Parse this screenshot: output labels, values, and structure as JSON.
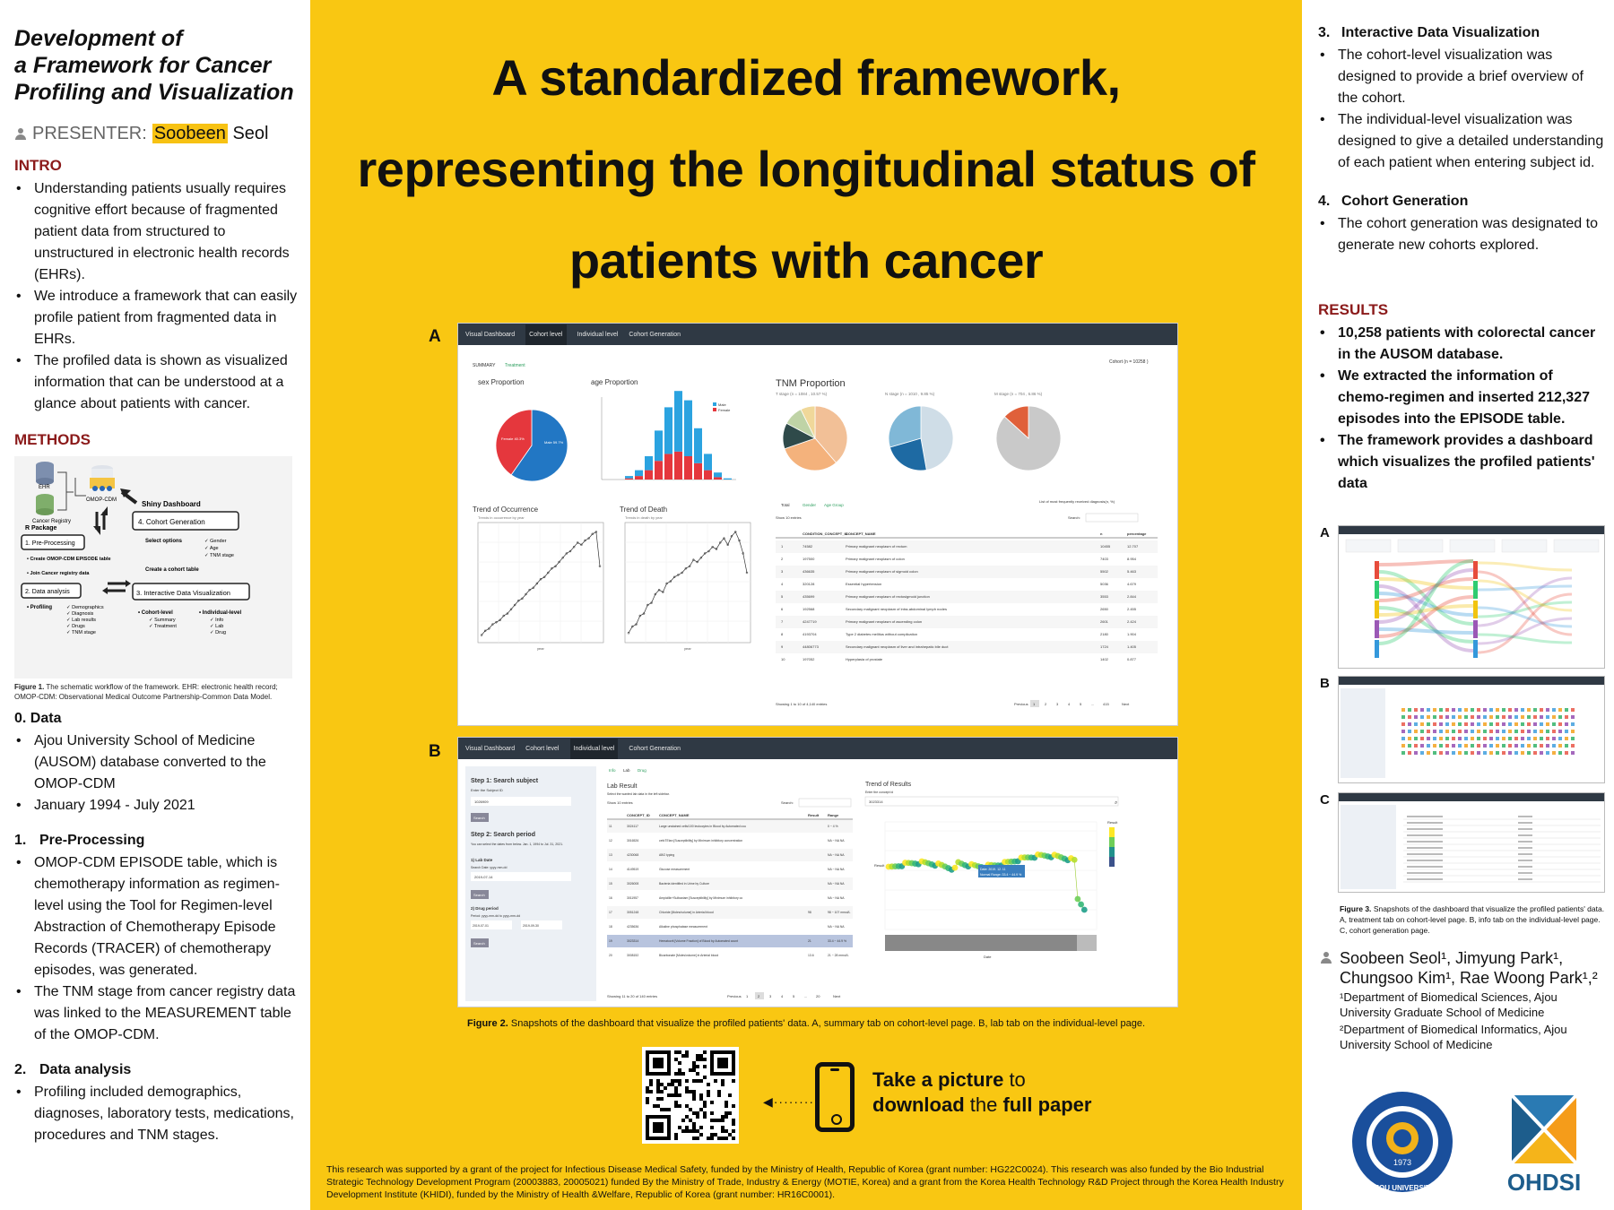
{
  "left": {
    "title_lines": [
      "Development of",
      "a Framework for Cancer",
      "Profiling and Visualization"
    ],
    "presenter_label": "PRESENTER:",
    "presenter_first": "Soobeen",
    "presenter_last": "Seol",
    "intro_heading": "INTRO",
    "intro_items": [
      "Understanding patients usually requires cognitive effort because of fragmented patient data from structured to unstructured in electronic health records (EHRs).",
      "We introduce a framework that can easily profile patient from fragmented data in EHRs.",
      "The profiled data is shown as visualized information that can be understood at a glance about patients with cancer."
    ],
    "methods_heading": "METHODS",
    "fig1_caption_bold": "Figure 1.",
    "fig1_caption": "The schematic workflow of the framework. EHR: electronic health record; OMOP-CDM: Observational Medical Outcome Partnership-Common Data Model.",
    "fig1": {
      "ehr": "EHR",
      "cancer_registry": "Cancer Registry",
      "omop": "OMOP-CDM",
      "shiny": "Shiny Dashboard",
      "r_package": "R Package",
      "pre_processing": "1. Pre-Processing",
      "pre_items": [
        "Create OMOP-CDM EPISODE table",
        "Join Cancer registry data"
      ],
      "data_analysis": "2. Data analysis",
      "profiling": "Profiling",
      "profiling_items": [
        "Demographics",
        "Diagnosis",
        "Lab results",
        "Drugs",
        "TNM stage"
      ],
      "cohort_gen": "4. Cohort Generation",
      "select_options": "Select options",
      "select_items": [
        "Gender",
        "Age",
        "TNM stage"
      ],
      "create_cohort": "Create a cohort table",
      "interactive": "3. Interactive Data Visualization",
      "cohort_level": "Cohort-level",
      "cohort_items": [
        "Summary",
        "Treatment"
      ],
      "individual_level": "Individual-level",
      "individual_items": [
        "Info",
        "Lab",
        "Drug"
      ]
    },
    "data_heading": "0. Data",
    "data_items": [
      "Ajou University School of Medicine (AUSOM) database converted to the OMOP-CDM",
      "January 1994 - July 2021"
    ],
    "pre_heading_num": "1.",
    "pre_heading": "Pre-Processing",
    "pre_items": [
      "OMOP-CDM EPISODE table, which is chemotherapy information as regimen-level using the Tool for Regimen-level Abstraction of Chemotherapy Episode Records (TRACER) of chemotherapy episodes, was generated.",
      "The TNM stage from cancer registry data was linked to the MEASUREMENT table of the OMOP-CDM."
    ],
    "analysis_heading_num": "2.",
    "analysis_heading": "Data analysis",
    "analysis_items": [
      "Profiling included demographics, diagnoses, laboratory tests, medications, procedures and TNM stages."
    ]
  },
  "center": {
    "title_lines": [
      "A standardized framework,",
      "representing the longitudinal status of",
      "patients with cancer"
    ],
    "panel_a": "A",
    "panel_b": "B",
    "dash_a": {
      "tabs": [
        "Visual Dashboard",
        "Cohort level",
        "Individual level",
        "Cohort Generation"
      ],
      "subtabs": [
        "SUMMARY",
        "Treatment"
      ],
      "cohort": "Cohort (n = 10258 )",
      "sex_title": "sex Proportion",
      "sex_labels": [
        "Female 40.3%",
        "Male 59.7%"
      ],
      "age_title": "age Proportion",
      "age_legend": [
        "Male",
        "Female"
      ],
      "tnm_title": "TNM Proportion",
      "tnm_sub": [
        "T stage (n = 1084 , 10.57 %)",
        "N stage (n = 1010 , 9.85 %)",
        "M stage (n = 704 , 6.86 %)"
      ],
      "occ_title": "Trend of Occurrence",
      "occ_sub": "Trends in occurrence by year",
      "death_title": "Trend of Death",
      "death_sub": "Trends in death by year",
      "x_axis": "year",
      "table_tabs": [
        "Total",
        "Gender",
        "Age Group"
      ],
      "table_caption": "List of most frequently received diagnosis(n, %)",
      "show_entries": "Show 10 entries",
      "search": "Search:",
      "table_headers": [
        "",
        "CONDITION_CONCEPT_ID",
        "CONCEPT_NAME",
        "n",
        "percentage"
      ],
      "rows": [
        [
          "1",
          "74582",
          "Primary malignant neoplasm of rectum",
          "10455",
          "12.707"
        ],
        [
          "2",
          "197500",
          "Primary malignant neoplasm of colon",
          "7403",
          "8.954"
        ],
        [
          "3",
          "436635",
          "Primary malignant neoplasm of sigmoid colon",
          "5502",
          "5.463"
        ],
        [
          "4",
          "320128",
          "Essential hypertension",
          "5036",
          "4.679"
        ],
        [
          "5",
          "435699",
          "Primary malignant neoplasm of rectosigmoid junction",
          "3553",
          "2.844"
        ],
        [
          "6",
          "192568",
          "Secondary malignant neoplasm of intra-abdominal lymph nodes",
          "2650",
          "2.455"
        ],
        [
          "7",
          "4247719",
          "Primary malignant neoplasm of ascending colon",
          "2601",
          "2.424"
        ],
        [
          "8",
          "4193704",
          "Type 2 diabetes mellitus without complication",
          "2180",
          "1.904"
        ],
        [
          "9",
          "44806773",
          "Secondary malignant neoplasm of liver and intrahepatic bile duct",
          "1724",
          "1.405"
        ],
        [
          "10",
          "197052",
          "Hyperplasia of prostate",
          "1402",
          "0.877"
        ]
      ],
      "showing": "Showing 1 to 10 of 4,140 entries",
      "pager": [
        "Previous",
        "1",
        "2",
        "3",
        "4",
        "5",
        "...",
        "415",
        "Next"
      ]
    },
    "dash_b": {
      "tabs": [
        "Visual Dashboard",
        "Cohort level",
        "Individual level",
        "Cohort Generation"
      ],
      "step1": "Step 1: Search subject",
      "enter_id": "Enter the Subject ID",
      "subject_id": "1026909",
      "search_btn": "Search",
      "step2": "Step 2: Search period",
      "period_hint": "You can select the dates from below. Jan. 1, 1994 to Jul. 31, 2021.",
      "lab_date": "1) Lab Date",
      "lab_date_hint": "Search Date: yyyy-mm-dd",
      "lab_date_val": "2019-07-14",
      "drug_period": "2) Drug period",
      "drug_hint": "Period: yyyy-mm-dd to yyyy-mm-dd",
      "drug_from": "2019-07-01",
      "drug_to": "2019-09-30",
      "subtabs": [
        "Info",
        "Lab",
        "Drug"
      ],
      "lab_result": "Lab Result",
      "lab_hint": "Select the wanted lab data in the left sidebar.",
      "show_entries": "Show 10 entries",
      "search": "Search:",
      "headers": [
        "",
        "CONCEPT_ID",
        "CONCEPT_NAME",
        "",
        "Result",
        "Range"
      ],
      "rows": [
        [
          "11",
          "3024117",
          "Large unstained cells/100 leukocytes in Blood by Automated count",
          "",
          "",
          "0 ~ 4 %"
        ],
        [
          "12",
          "3016526",
          "cefoTEtan [Susceptibility] by Minimum inhibitory concentration (MIC)",
          "",
          "",
          "NA ~ NA NA"
        ],
        [
          "13",
          "4230068",
          "ABO typing",
          "",
          "",
          "NA ~ NA NA"
        ],
        [
          "14",
          "4149519",
          "Glucose measurement",
          "",
          "",
          "NA ~ NA NA"
        ],
        [
          "15",
          "3026008",
          "Bacteria identified in Urine by Culture",
          "",
          "",
          "NA ~ NA NA"
        ],
        [
          "16",
          "3011957",
          "Ampicillin+Sulbactam [Susceptibility] by Minimum inhibitory concentration (MIC)",
          "",
          "",
          "NA ~ NA NA"
        ],
        [
          "17",
          "3051248",
          "Chloride [Moles/volume] in Arterial blood",
          "",
          "98",
          "98 ~ 107 mmol/L"
        ],
        [
          "18",
          "4235636",
          "Alkaline phosphatase measurement",
          "",
          "",
          "NA ~ NA NA"
        ],
        [
          "19",
          "3023314",
          "Hematocrit [Volume Fraction] of Blood by Automated count",
          "",
          "21",
          "33.4 ~ 44.9 %"
        ],
        [
          "20",
          "3008152",
          "Bicarbonate [Moles/volume] in Arterial blood",
          "",
          "13.6",
          "21 ~ 28 mmol/L"
        ]
      ],
      "showing": "Showing 11 to 20 of 140 entries",
      "pager": [
        "Previous",
        "1",
        "2",
        "3",
        "4",
        "5",
        "...",
        "20",
        "Next"
      ],
      "trend_title": "Trend of Results",
      "trend_hint": "Enter the concept id",
      "trend_concept": "3023314",
      "trend_x": "Date",
      "trend_y": "Result",
      "trend_legend": "Result",
      "trend_tooltip": [
        "Date: 2019. 12. 11",
        "Normal Range: 33.4 ~ 44.9 %"
      ]
    },
    "fig2_bold": "Figure 2.",
    "fig2_caption": "Snapshots of the dashboard that visualize the profiled patients' data. A, summary tab on cohort-level page. B, lab tab on the individual-level page.",
    "take_1": "Take a picture",
    "take_2": " to",
    "take_3": "download",
    "take_4": " the ",
    "take_5": "full paper",
    "funding": "This research was supported by a grant of the project for Infectious Disease Medical Safety, funded by the Ministry of Health, Republic of Korea (grant number: HG22C0024). This research was also funded by the Bio Industrial Strategic Technology Development Program (20003883, 20005021) funded By the Ministry of Trade, Industry & Energy (MOTIE, Korea) and a grant from the Korea Health Technology R&D Project through the Korea Health Industry Development Institute (KHIDI), funded by the Ministry of Health &Welfare, Republic of Korea (grant number: HR16C0001)."
  },
  "right": {
    "s3_num": "3.",
    "s3_heading": "Interactive Data Visualization",
    "s3_items": [
      "The cohort-level visualization was designed to provide a brief overview of the cohort.",
      "The individual-level visualization was designed to give a detailed understanding of each patient when entering subject id."
    ],
    "s4_num": "4.",
    "s4_heading": "Cohort Generation",
    "s4_items": [
      "The cohort generation was designated to generate new cohorts explored."
    ],
    "results_heading": "RESULTS",
    "results_items": [
      "10,258 patients with colorectal cancer in the AUSOM database.",
      "We extracted the information of chemo-regimen and inserted 212,327 episodes into the EPISODE table.",
      "The framework provides a dashboard which visualizes the profiled patients' data"
    ],
    "fig_labels": [
      "A",
      "B",
      "C"
    ],
    "fig3_bold": "Figure 3.",
    "fig3_caption": "Snapshots of the dashboard that visualize the profiled patients' data. A, treatment tab on cohort-level page. B, info tab on the individual-level page. C, cohort generation page.",
    "authors": "Soobeen Seol¹, Jimyung Park¹, Chungsoo Kim¹, Rae Woong Park¹,²",
    "affil_1": "¹Department of Biomedical Sciences, Ajou University Graduate School of Medicine",
    "affil_2": "²Department of Biomedical Informatics, Ajou University School of Medicine",
    "ajou_text": "AJOU UNIVERSITY",
    "ajou_year": "1973",
    "ohdsi": "OHDSI"
  },
  "colors": {
    "yellow": "#f9c712",
    "dark_red": "#8b1a1a",
    "navbar": "#2f3944",
    "male": "#1f77c4",
    "female": "#e03c3c"
  }
}
